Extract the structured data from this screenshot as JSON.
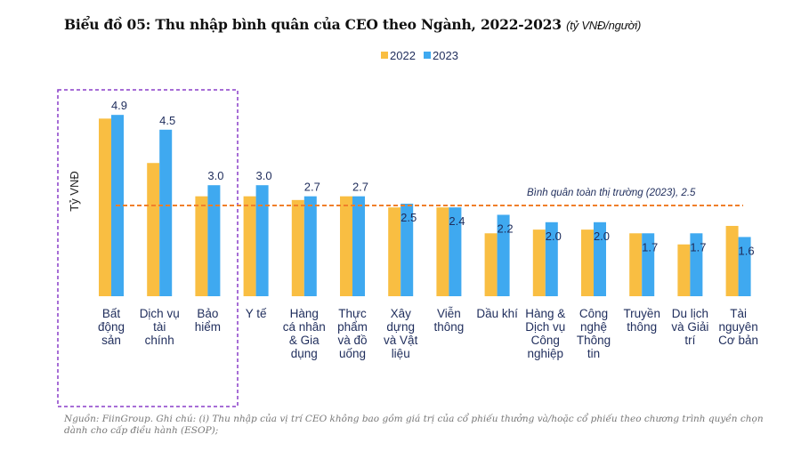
{
  "title": "Biểu đồ 05: Thu nhập bình quân của CEO theo Ngành, 2022-2023",
  "title_unit": "(tỷ VNĐ/người)",
  "note": "Nguồn: FiinGroup. Ghi chú: (i) Thu nhập của vị trí CEO không bao gồm giá trị của cổ phiếu thưởng và/hoặc cổ phiếu theo chương trình quyền chọn dành cho cấp điều hành (ESOP);",
  "chart_data": {
    "type": "bar",
    "ylabel": "Tỷ VNĐ",
    "ylim": [
      0,
      5
    ],
    "grid": false,
    "legend": "top-center",
    "categories": [
      [
        "Bất",
        "động",
        "sản"
      ],
      [
        "Dịch vụ",
        "tài",
        "chính"
      ],
      [
        "Bảo",
        "hiểm"
      ],
      [
        "Y tế"
      ],
      [
        "Hàng",
        "cá nhân",
        "& Gia",
        "dụng"
      ],
      [
        "Thực",
        "phẩm",
        "và đồ",
        "uống"
      ],
      [
        "Xây",
        "dựng",
        "và Vật",
        "liệu"
      ],
      [
        "Viễn",
        "thông"
      ],
      [
        "Dầu khí"
      ],
      [
        "Hàng &",
        "Dịch vụ",
        "Công",
        "nghiệp"
      ],
      [
        "Công",
        "nghệ",
        "Thông",
        "tin"
      ],
      [
        "Truyền",
        "thông"
      ],
      [
        "Du lịch",
        "và Giải",
        "trí"
      ],
      [
        "Tài",
        "nguyên",
        "Cơ bản"
      ]
    ],
    "series": [
      {
        "name": "2022",
        "color": "#F9BE42",
        "values": [
          4.8,
          3.6,
          2.7,
          2.7,
          2.6,
          2.7,
          2.4,
          2.4,
          1.7,
          1.8,
          1.8,
          1.7,
          1.4,
          1.9
        ]
      },
      {
        "name": "2023",
        "color": "#3FA9F0",
        "values": [
          4.9,
          4.5,
          3.0,
          3.0,
          2.7,
          2.7,
          2.5,
          2.4,
          2.2,
          2.0,
          2.0,
          1.7,
          1.7,
          1.6
        ],
        "labels": [
          "4.9",
          "4.5",
          "3.0",
          "3.0",
          "2.7",
          "2.7",
          "2.5",
          "2.4",
          "2.2",
          "2.0",
          "2.0",
          "1.7",
          "1.7",
          "1.6"
        ]
      }
    ],
    "reference_line": {
      "value": 2.5,
      "label": "Bình quân toàn thị trường (2023), 2.5",
      "color": "#F07F2A"
    },
    "highlight_box": {
      "categories": [
        "Bất động sản",
        "Dịch vụ tài chính",
        "Bảo hiểm"
      ],
      "color": "#8A3FC9"
    }
  }
}
